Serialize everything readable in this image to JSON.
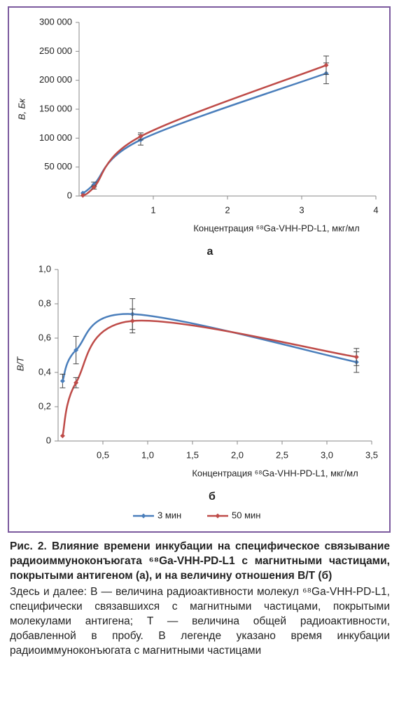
{
  "chart_data": [
    {
      "type": "line",
      "panel_label": "а",
      "x_label": "Концентрация ⁶⁸Ga-VHH-PD-L1, мкг/мл",
      "y_label": "B, Бк",
      "x": [
        0.05,
        0.2,
        0.83,
        3.33
      ],
      "series": [
        {
          "color": "#4a7ebb",
          "values": [
            5000,
            20000,
            97000,
            212000
          ],
          "errors": [
            null,
            4000,
            9000,
            18000
          ]
        },
        {
          "color": "#be4b48",
          "values": [
            1000,
            15000,
            103000,
            226000
          ],
          "errors": [
            null,
            3000,
            6000,
            16000
          ]
        }
      ],
      "xlim": [
        0,
        4
      ],
      "xticks": [
        1,
        2,
        3,
        4
      ],
      "ylim": [
        0,
        300000
      ],
      "yticks": [
        0,
        {
          "value": 50000,
          "label": "50 000"
        },
        {
          "value": 100000,
          "label": "100 000"
        },
        {
          "value": 150000,
          "label": "150 000"
        },
        {
          "value": 200000,
          "label": "200 000"
        },
        {
          "value": 250000,
          "label": "250 000"
        },
        {
          "value": 300000,
          "label": "300 000"
        }
      ]
    },
    {
      "type": "line",
      "panel_label": "б",
      "x_label": "Концентрация ⁶⁸Ga-VHH-PD-L1, мкг/мл",
      "y_label": "B/T",
      "x": [
        0.05,
        0.2,
        0.83,
        3.33
      ],
      "series": [
        {
          "name": "3 мин",
          "color": "#4a7ebb",
          "values": [
            0.35,
            0.53,
            0.74,
            0.46
          ],
          "errors": [
            0.04,
            0.08,
            0.09,
            0.06
          ]
        },
        {
          "name": "50 мин",
          "color": "#be4b48",
          "values": [
            0.03,
            0.34,
            0.7,
            0.49
          ],
          "errors": [
            null,
            0.03,
            0.07,
            0.05
          ]
        }
      ],
      "xlim": [
        0,
        3.5
      ],
      "xticks": [
        {
          "value": 0.5,
          "label": "0,5"
        },
        {
          "value": 1.0,
          "label": "1,0"
        },
        {
          "value": 1.5,
          "label": "1,5"
        },
        {
          "value": 2.0,
          "label": "2,0"
        },
        {
          "value": 2.5,
          "label": "2,5"
        },
        {
          "value": 3.0,
          "label": "3,0"
        },
        {
          "value": 3.5,
          "label": "3,5"
        }
      ],
      "ylim": [
        0,
        1
      ],
      "yticks": [
        0,
        {
          "value": 0.2,
          "label": "0,2"
        },
        {
          "value": 0.4,
          "label": "0,4"
        },
        {
          "value": 0.6,
          "label": "0,6"
        },
        {
          "value": 0.8,
          "label": "0,8"
        },
        {
          "value": 1.0,
          "label": "1,0"
        }
      ],
      "legend": "bottom"
    }
  ],
  "caption": {
    "title": "Рис. 2. Влияние времени инкубации на специфическое связывание радиоиммуноконъюгата ⁶⁸Ga-VHH-PD-L1 с магнитными частицами, покрытыми антигеном (а), и на величину отношения B/T (б)",
    "text": "Здесь и далее: B — величина радиоактивности молекул ⁶⁸Ga-VHH-PD-L1, специфически связавшихся с магнитными частицами, покрытыми молекулами антигена; T — величина общей радиоактивности, добавленной в пробу. В легенде указано время инкубации радиоиммуноконъюгата с магнитными частицами"
  }
}
